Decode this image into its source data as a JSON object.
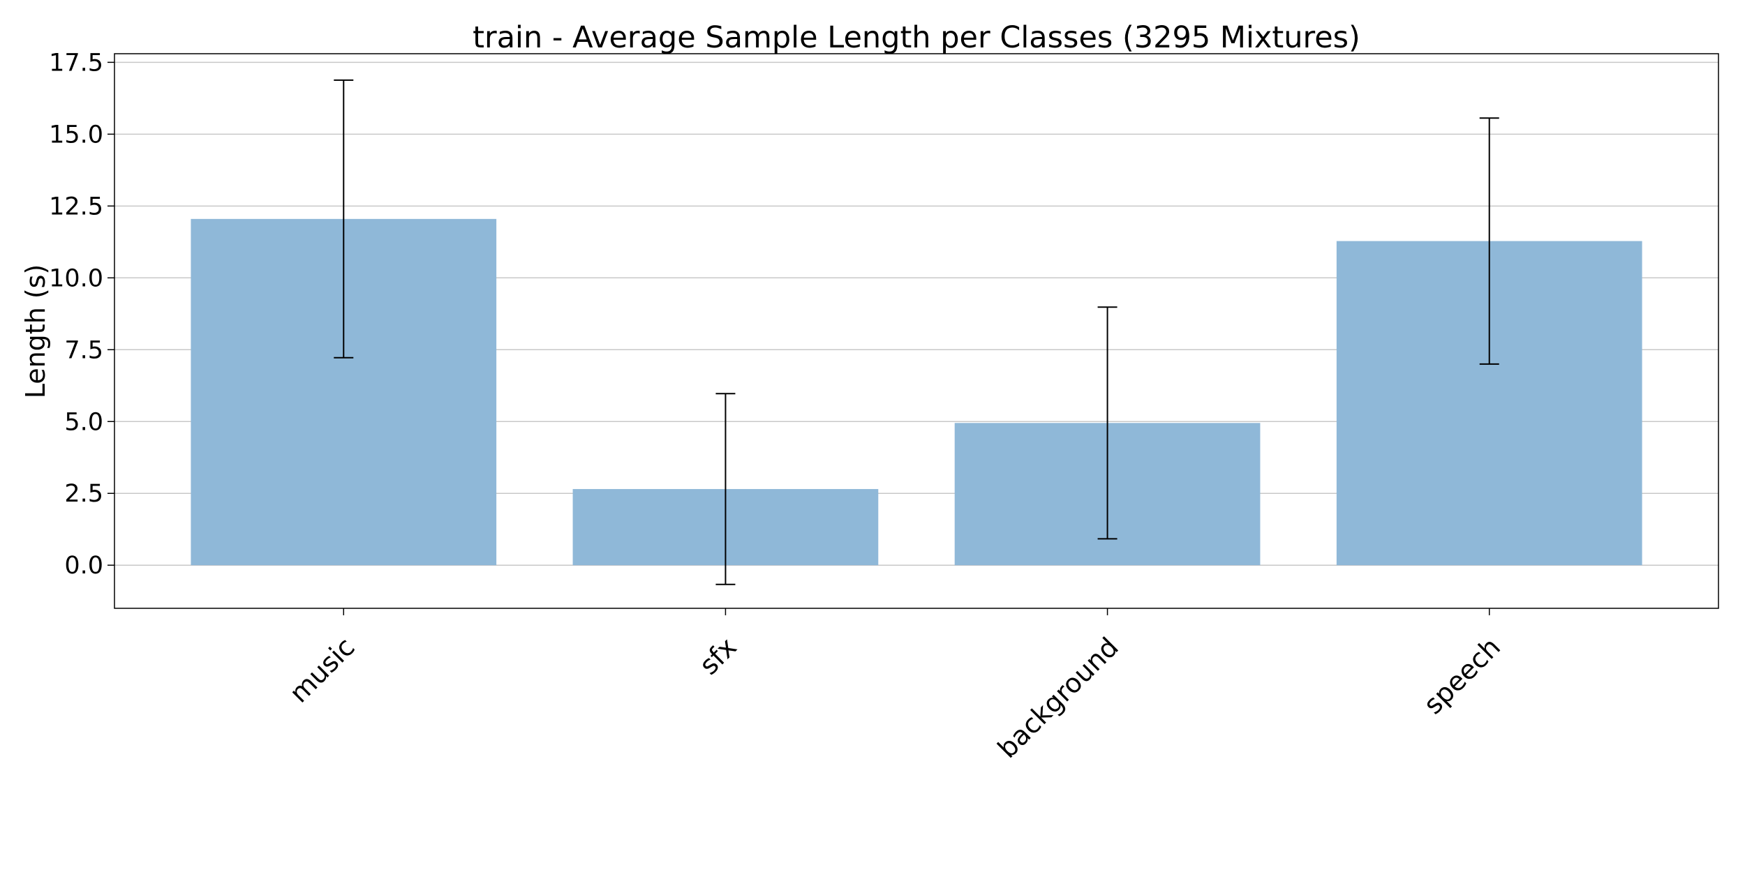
{
  "chart_data": {
    "type": "bar",
    "title": "train - Average Sample Length per Classes (3295 Mixtures)",
    "xlabel": "",
    "ylabel": "Length (s)",
    "categories": [
      "music",
      "sfx",
      "background",
      "speech"
    ],
    "values": [
      12.05,
      2.65,
      4.95,
      11.28
    ],
    "error": [
      4.83,
      3.32,
      4.03,
      4.28
    ],
    "ylim": [
      -1.5,
      17.8
    ],
    "yticks": [
      0.0,
      2.5,
      5.0,
      7.5,
      10.0,
      12.5,
      15.0,
      17.5
    ],
    "ytick_labels": [
      "0.0",
      "2.5",
      "5.0",
      "7.5",
      "10.0",
      "12.5",
      "15.0",
      "17.5"
    ],
    "grid": "horizontal",
    "xtick_rotation_deg": 45,
    "bar_color": "#8fb8d8",
    "errorbar_color": "#000000",
    "grid_color": "#c8c8c8"
  }
}
